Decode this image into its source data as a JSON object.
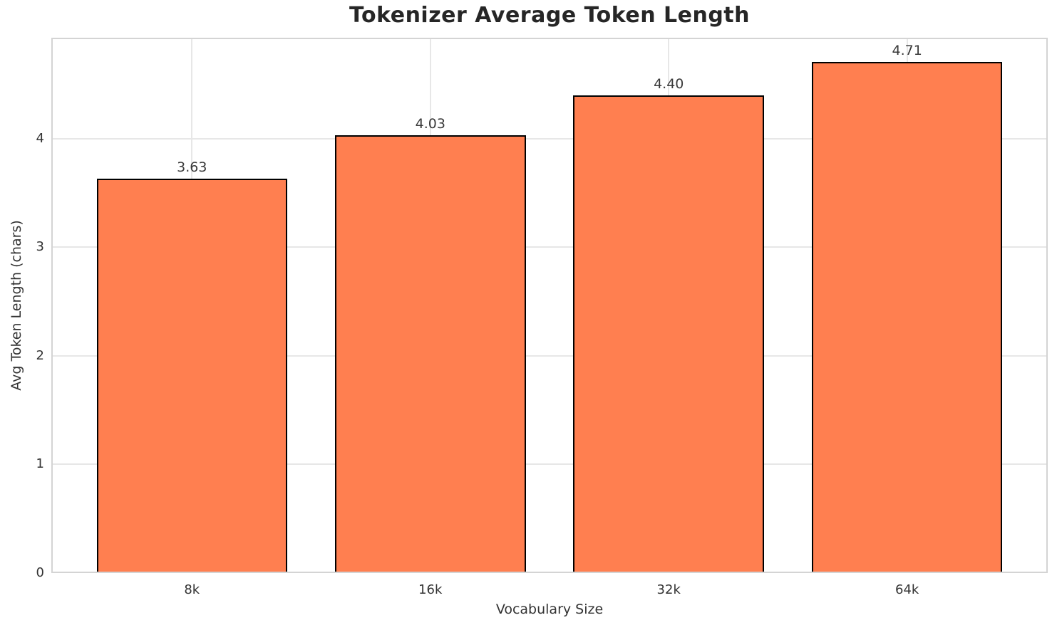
{
  "chart_data": {
    "type": "bar",
    "title": "Tokenizer Average Token Length",
    "xlabel": "Vocabulary Size",
    "ylabel": "Avg Token Length (chars)",
    "categories": [
      "8k",
      "16k",
      "32k",
      "64k"
    ],
    "values": [
      3.63,
      4.03,
      4.4,
      4.71
    ],
    "value_labels": [
      "3.63",
      "4.03",
      "4.40",
      "4.71"
    ],
    "yticks": [
      0,
      1,
      2,
      3,
      4
    ],
    "ytick_labels": [
      "0",
      "1",
      "2",
      "3",
      "4"
    ],
    "ylim": [
      0,
      4.93
    ],
    "bar_width_fraction": 0.8,
    "grid": "both",
    "colors": {
      "bar_fill": "#FF7F50",
      "bar_edge": "#000000",
      "grid": "#e7e7e7",
      "spine": "#d4d4d4",
      "title": "#262626",
      "text": "#333333",
      "background": "#ffffff"
    }
  }
}
